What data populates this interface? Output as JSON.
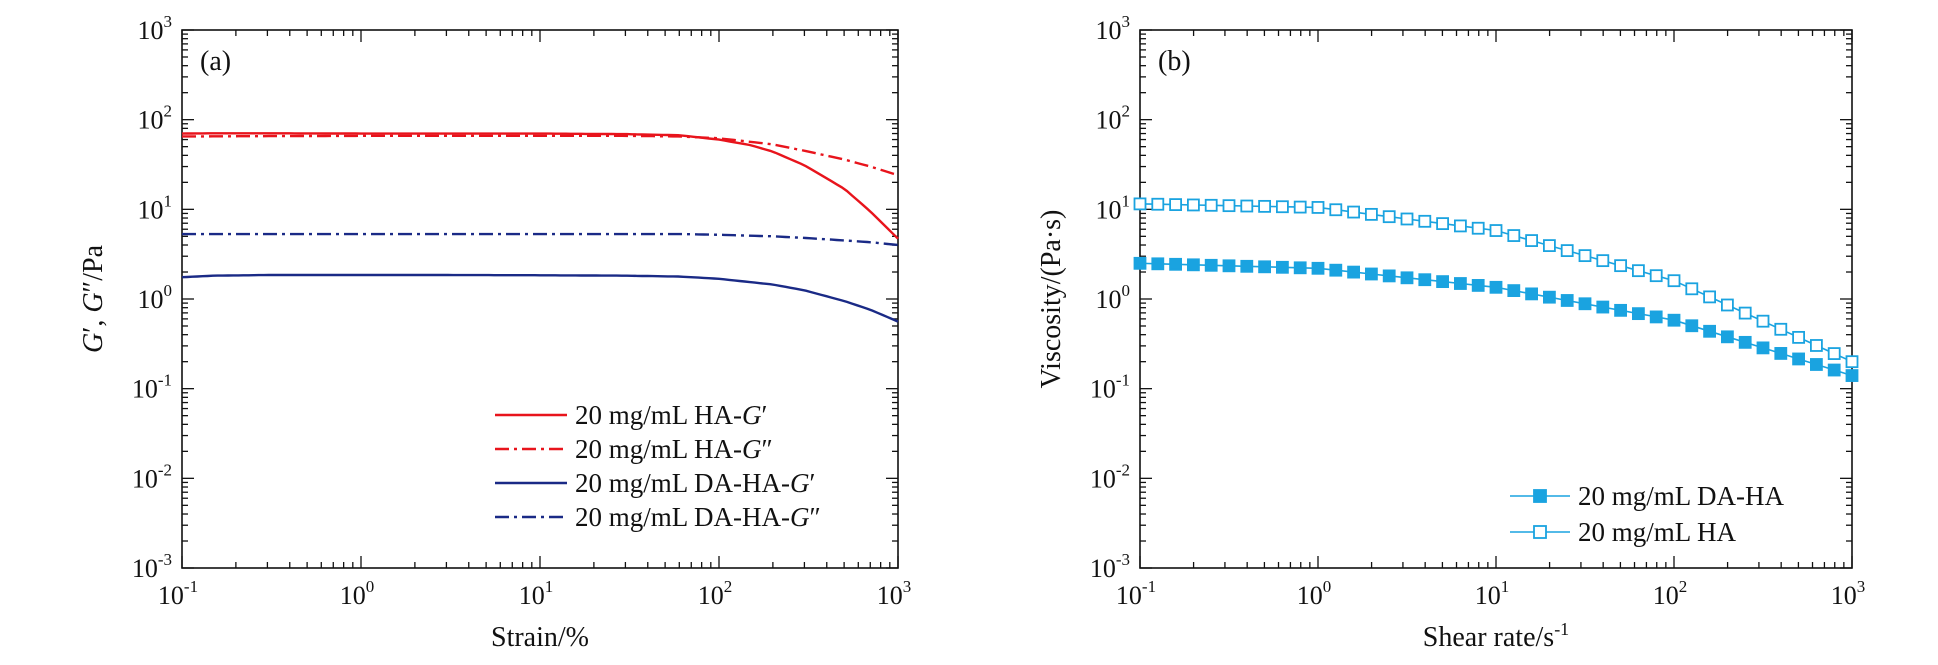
{
  "chart_data": [
    {
      "type": "line",
      "panel_label": "(a)",
      "xlabel": "Strain/%",
      "ylabel_parts": [
        {
          "text": "G",
          "italic": true
        },
        {
          "text": "′, ",
          "italic": false
        },
        {
          "text": "G",
          "italic": true
        },
        {
          "text": "″/Pa",
          "italic": false
        }
      ],
      "x_scale": "log",
      "y_scale": "log",
      "xlim": [
        0.1,
        1000
      ],
      "ylim": [
        0.001,
        1000
      ],
      "xticks": [
        {
          "value": 0.1,
          "base": "10",
          "exp": "-1"
        },
        {
          "value": 1,
          "base": "10",
          "exp": "0"
        },
        {
          "value": 10,
          "base": "10",
          "exp": "1"
        },
        {
          "value": 100,
          "base": "10",
          "exp": "2"
        },
        {
          "value": 1000,
          "base": "10",
          "exp": "3"
        }
      ],
      "yticks": [
        {
          "value": 0.001,
          "base": "10",
          "exp": "-3"
        },
        {
          "value": 0.01,
          "base": "10",
          "exp": "-2"
        },
        {
          "value": 0.1,
          "base": "10",
          "exp": "-1"
        },
        {
          "value": 1,
          "base": "10",
          "exp": "0"
        },
        {
          "value": 10,
          "base": "10",
          "exp": "1"
        },
        {
          "value": 100,
          "base": "10",
          "exp": "2"
        },
        {
          "value": 1000,
          "base": "10",
          "exp": "3"
        }
      ],
      "grid": false,
      "legend_position": "bottom-right",
      "series": [
        {
          "name": "20 mg/mL HA-G′",
          "name_parts": [
            {
              "text": "20 mg/mL HA-",
              "italic": false
            },
            {
              "text": "G",
              "italic": true
            },
            {
              "text": "′",
              "italic": false
            }
          ],
          "color": "#e8141c",
          "dash": "solid",
          "x": [
            0.1,
            0.15,
            0.3,
            1,
            3,
            10,
            30,
            60,
            100,
            150,
            200,
            300,
            500,
            700,
            1000
          ],
          "y": [
            70,
            70.5,
            70.5,
            70,
            70,
            70,
            69,
            67,
            60,
            52,
            44,
            31,
            17,
            9.5,
            4.7
          ]
        },
        {
          "name": "20 mg/mL HA-G″",
          "name_parts": [
            {
              "text": "20 mg/mL HA-",
              "italic": false
            },
            {
              "text": "G",
              "italic": true
            },
            {
              "text": "″",
              "italic": false
            }
          ],
          "color": "#e8141c",
          "dash": "dashdot",
          "x": [
            0.1,
            0.3,
            1,
            3,
            10,
            30,
            60,
            100,
            200,
            300,
            500,
            700,
            1000
          ],
          "y": [
            65,
            65.5,
            66,
            66,
            66,
            66,
            65,
            62,
            53,
            45,
            36,
            30,
            24
          ]
        },
        {
          "name": "20 mg/mL DA-HA-G′",
          "name_parts": [
            {
              "text": "20 mg/mL DA-HA-",
              "italic": false
            },
            {
              "text": "G",
              "italic": true
            },
            {
              "text": "′",
              "italic": false
            }
          ],
          "color": "#1a2a86",
          "dash": "solid",
          "x": [
            0.1,
            0.15,
            0.3,
            1,
            3,
            10,
            30,
            60,
            100,
            200,
            300,
            500,
            700,
            1000
          ],
          "y": [
            1.75,
            1.82,
            1.85,
            1.85,
            1.85,
            1.84,
            1.82,
            1.78,
            1.68,
            1.45,
            1.25,
            0.95,
            0.76,
            0.56
          ]
        },
        {
          "name": "20 mg/mL DA-HA-G″",
          "name_parts": [
            {
              "text": "20 mg/mL DA-HA-",
              "italic": false
            },
            {
              "text": "G",
              "italic": true
            },
            {
              "text": "″",
              "italic": false
            }
          ],
          "color": "#1a2a86",
          "dash": "dashdot",
          "x": [
            0.1,
            0.3,
            1,
            3,
            10,
            30,
            60,
            100,
            200,
            300,
            500,
            700,
            1000
          ],
          "y": [
            5.3,
            5.3,
            5.3,
            5.3,
            5.3,
            5.3,
            5.3,
            5.2,
            5.0,
            4.8,
            4.5,
            4.3,
            4.0
          ]
        }
      ]
    },
    {
      "type": "line",
      "panel_label": "(b)",
      "xlabel_parts": [
        {
          "text": "Shear rate/s",
          "italic": false
        },
        {
          "text": "-1",
          "italic": false,
          "sup": true
        }
      ],
      "ylabel": "Viscosity/(Pa·s)",
      "x_scale": "log",
      "y_scale": "log",
      "xlim": [
        0.1,
        1000
      ],
      "ylim": [
        0.001,
        1000
      ],
      "xticks": [
        {
          "value": 0.1,
          "base": "10",
          "exp": "-1"
        },
        {
          "value": 1,
          "base": "10",
          "exp": "0"
        },
        {
          "value": 10,
          "base": "10",
          "exp": "1"
        },
        {
          "value": 100,
          "base": "10",
          "exp": "2"
        },
        {
          "value": 1000,
          "base": "10",
          "exp": "3"
        }
      ],
      "yticks": [
        {
          "value": 0.001,
          "base": "10",
          "exp": "-3"
        },
        {
          "value": 0.01,
          "base": "10",
          "exp": "-2"
        },
        {
          "value": 0.1,
          "base": "10",
          "exp": "-1"
        },
        {
          "value": 1,
          "base": "10",
          "exp": "0"
        },
        {
          "value": 10,
          "base": "10",
          "exp": "1"
        },
        {
          "value": 100,
          "base": "10",
          "exp": "2"
        },
        {
          "value": 1000,
          "base": "10",
          "exp": "3"
        }
      ],
      "grid": false,
      "legend_position": "bottom-right",
      "series": [
        {
          "name": "20 mg/mL DA-HA",
          "color": "#1aa3e0",
          "marker": "filled-square",
          "x": [
            0.1,
            1,
            10,
            100,
            1000
          ],
          "y": [
            2.5,
            2.2,
            1.35,
            0.58,
            0.14
          ],
          "points_per_decade": 10
        },
        {
          "name": "20 mg/mL HA",
          "color": "#1aa3e0",
          "marker": "open-square",
          "x": [
            0.1,
            1,
            10,
            100,
            1000
          ],
          "y": [
            11.5,
            10.5,
            5.8,
            1.6,
            0.2
          ],
          "points_per_decade": 10
        }
      ]
    }
  ]
}
